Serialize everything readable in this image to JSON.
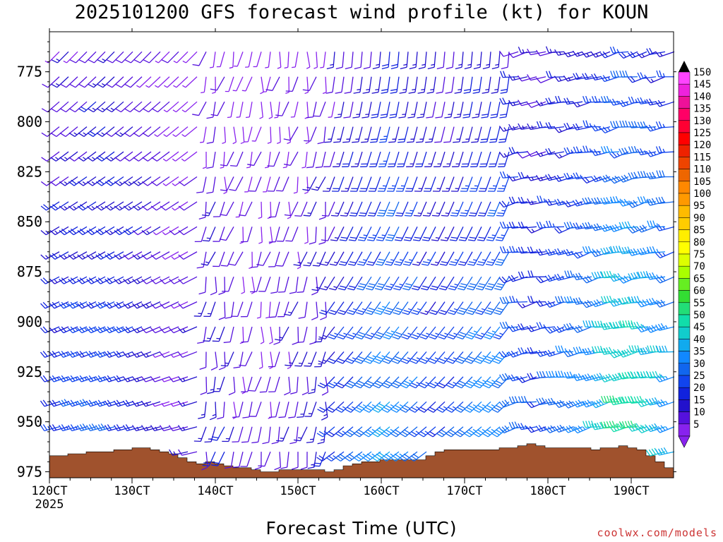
{
  "chart_data": {
    "type": "wind-barb-profile",
    "title": "2025101200 GFS forecast wind profile (kt) for KOUN",
    "xlabel": "Forecast Time (UTC)",
    "ylabel": "",
    "credit": "coolwx.com/models",
    "y_axis": {
      "reversed": true,
      "ticks": [
        775,
        800,
        825,
        850,
        875,
        900,
        925,
        950,
        975
      ]
    },
    "x_axis": {
      "ticks": [
        {
          "label": "120CT",
          "sublabel": "2025"
        },
        {
          "label": "130CT"
        },
        {
          "label": "140CT"
        },
        {
          "label": "150CT"
        },
        {
          "label": "160CT"
        },
        {
          "label": "170CT"
        },
        {
          "label": "180CT"
        },
        {
          "label": "190CT"
        }
      ]
    },
    "colorbar": {
      "labels": [
        150,
        145,
        140,
        135,
        130,
        125,
        120,
        115,
        110,
        105,
        100,
        95,
        90,
        85,
        80,
        75,
        70,
        65,
        60,
        55,
        50,
        45,
        40,
        35,
        30,
        25,
        20,
        15,
        10,
        5
      ],
      "colors": [
        "#ff44ff",
        "#ee22dd",
        "#ee1199",
        "#ff0066",
        "#ff0033",
        "#ff0000",
        "#ee2200",
        "#ee4400",
        "#ee6600",
        "#ff8800",
        "#ff9900",
        "#ffbb00",
        "#ffcc00",
        "#ffee00",
        "#ffff00",
        "#ddff00",
        "#aaff00",
        "#66ee22",
        "#33dd33",
        "#22dd77",
        "#11ddaa",
        "#11cccc",
        "#11aaee",
        "#1188ff",
        "#1166ee",
        "#1144ee",
        "#1122dd",
        "#2211cc",
        "#5511dd",
        "#8822ee"
      ]
    },
    "terrain_pressure_hpa": [
      967,
      967,
      966,
      966,
      965,
      965,
      965,
      964,
      964,
      963,
      963,
      964,
      965,
      966,
      968,
      970,
      971,
      970,
      971,
      972,
      973,
      973,
      974,
      975,
      975,
      974,
      974,
      974,
      974,
      974,
      975,
      974,
      972,
      971,
      970,
      970,
      969,
      969,
      969,
      969,
      969,
      967,
      965,
      964,
      964,
      964,
      964,
      964,
      964,
      963,
      963,
      962,
      961,
      962,
      963,
      963,
      963,
      963,
      963,
      964,
      963,
      963,
      962,
      963,
      964,
      967,
      970,
      973
    ],
    "wind_speed_kt_surface": [
      20,
      20,
      22,
      22,
      24,
      24,
      24,
      22,
      20,
      18,
      15,
      12,
      10,
      8,
      8,
      10,
      12,
      14,
      12,
      10,
      8,
      8,
      8,
      8,
      10,
      10,
      10,
      12,
      14,
      15,
      18,
      20,
      22,
      25,
      28,
      30,
      32,
      32,
      30,
      28,
      25,
      22,
      20,
      22,
      25,
      28,
      30,
      30,
      32,
      30,
      28,
      25,
      22,
      20,
      25,
      28,
      30,
      32,
      32,
      35,
      40,
      45,
      45,
      45,
      42,
      40,
      38,
      35
    ]
  }
}
